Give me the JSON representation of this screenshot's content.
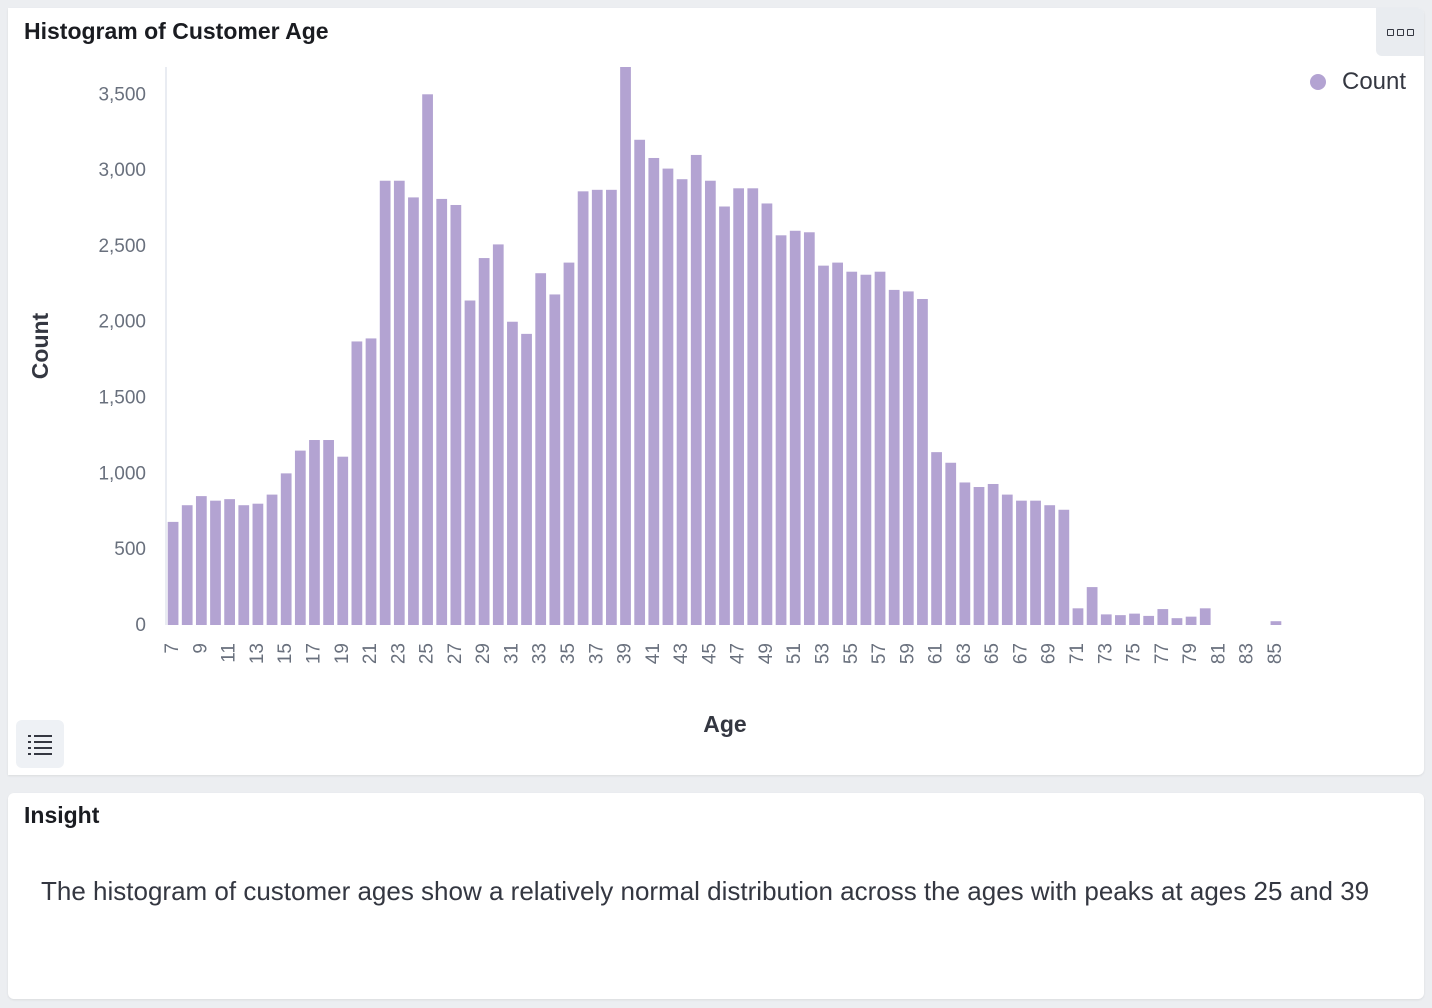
{
  "chart_panel": {
    "title": "Histogram of Customer Age"
  },
  "insight_panel": {
    "title": "Insight",
    "text": "The histogram of customer ages show a relatively normal distribution across the ages with peaks at ages 25 and 39"
  },
  "icons": {
    "panel_menu": "ellipsis-boxes-icon",
    "legend_toggle": "list-icon"
  },
  "chart_data": {
    "type": "bar",
    "xlabel": "Age",
    "ylabel": "Count",
    "ylim": [
      0,
      3680
    ],
    "yticks": [
      0,
      500,
      1000,
      1500,
      2000,
      2500,
      3000,
      3500
    ],
    "ytick_labels": [
      "0",
      "500",
      "1,000",
      "1,500",
      "2,000",
      "2,500",
      "3,000",
      "3,500"
    ],
    "categories": [
      7,
      8,
      9,
      10,
      11,
      12,
      13,
      14,
      15,
      16,
      17,
      18,
      19,
      20,
      21,
      22,
      23,
      24,
      25,
      26,
      27,
      28,
      29,
      30,
      31,
      32,
      33,
      34,
      35,
      36,
      37,
      38,
      39,
      40,
      41,
      42,
      43,
      44,
      45,
      46,
      47,
      48,
      49,
      50,
      51,
      52,
      53,
      54,
      55,
      56,
      57,
      58,
      59,
      60,
      61,
      62,
      63,
      64,
      65,
      66,
      67,
      68,
      69,
      70,
      71,
      72,
      73,
      74,
      75,
      76,
      77,
      78,
      79,
      80,
      81,
      82,
      83,
      84,
      85
    ],
    "xtick_labels": [
      "7",
      "9",
      "11",
      "13",
      "15",
      "17",
      "19",
      "21",
      "23",
      "25",
      "27",
      "29",
      "31",
      "33",
      "35",
      "37",
      "39",
      "41",
      "43",
      "45",
      "47",
      "49",
      "51",
      "53",
      "55",
      "57",
      "59",
      "61",
      "63",
      "65",
      "67",
      "69",
      "71",
      "73",
      "75",
      "77",
      "79",
      "81",
      "83",
      "85"
    ],
    "legend": {
      "position": "top-right"
    },
    "grid": false,
    "series": [
      {
        "name": "Count",
        "color": "#b3a3d2",
        "values": [
          680,
          790,
          850,
          820,
          830,
          790,
          800,
          860,
          1000,
          1150,
          1220,
          1220,
          1110,
          1870,
          1890,
          2930,
          2930,
          2820,
          3500,
          2810,
          2770,
          2140,
          2420,
          2510,
          2000,
          1920,
          2320,
          2180,
          2390,
          2860,
          2870,
          2870,
          3680,
          3200,
          3080,
          3010,
          2940,
          3100,
          2930,
          2760,
          2880,
          2880,
          2780,
          2570,
          2600,
          2590,
          2370,
          2390,
          2330,
          2310,
          2330,
          2210,
          2200,
          2150,
          1140,
          1070,
          940,
          910,
          930,
          860,
          820,
          820,
          790,
          760,
          110,
          250,
          70,
          65,
          75,
          60,
          105,
          45,
          55,
          110,
          0,
          0,
          0,
          0,
          25
        ]
      }
    ]
  }
}
